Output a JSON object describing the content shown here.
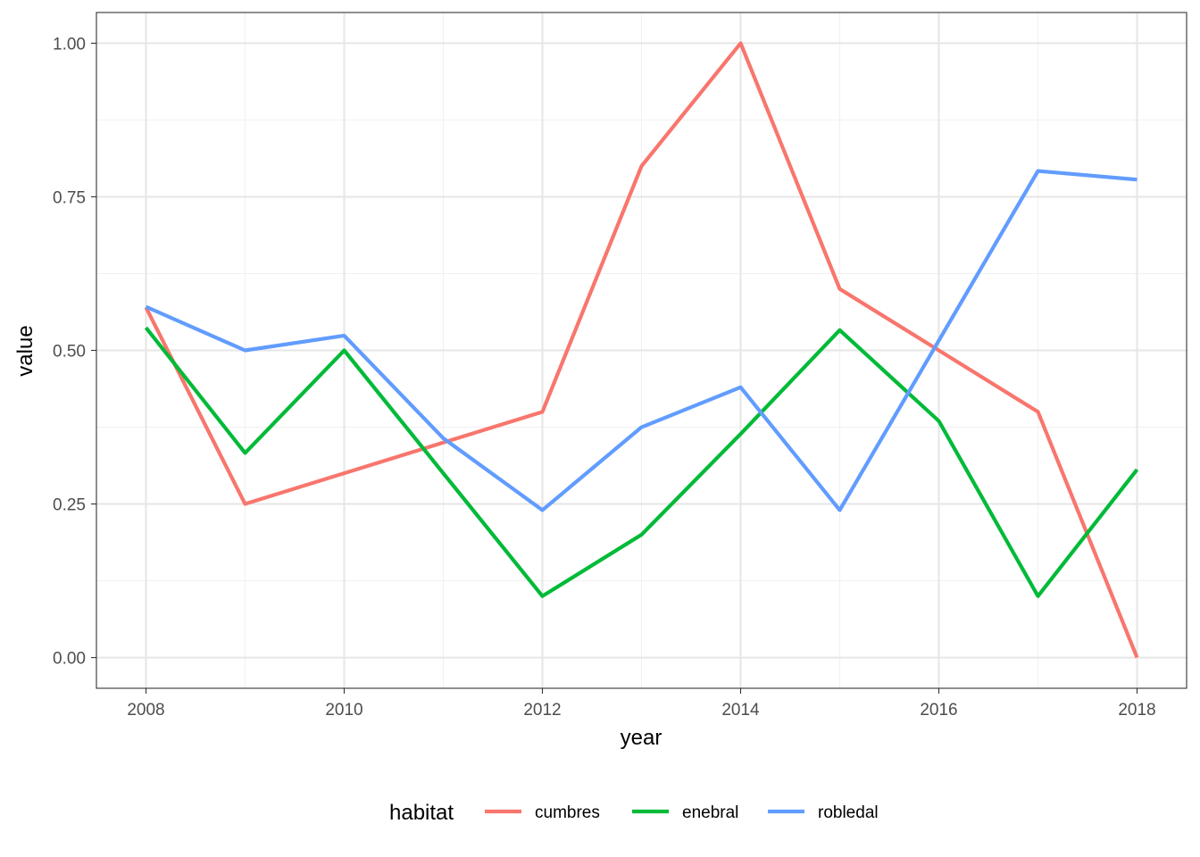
{
  "chart_data": {
    "type": "line",
    "xlabel": "year",
    "ylabel": "value",
    "xlim": [
      2007.5,
      2018.5
    ],
    "ylim": [
      -0.05,
      1.05
    ],
    "x_ticks": [
      2008,
      2010,
      2012,
      2014,
      2016,
      2018
    ],
    "x_tick_labels": [
      "2008",
      "2010",
      "2012",
      "2014",
      "2016",
      "2018"
    ],
    "y_ticks": [
      0,
      0.25,
      0.5,
      0.75,
      1.0
    ],
    "y_tick_labels": [
      "0.00",
      "0.25",
      "0.50",
      "0.75",
      "1.00"
    ],
    "grid": true,
    "legend_position": "bottom",
    "legend_title": "habitat",
    "x": [
      2008,
      2009,
      2010,
      2011,
      2012,
      2013,
      2014,
      2015,
      2016,
      2017,
      2018
    ],
    "series": [
      {
        "name": "cumbres",
        "color": "#F8766D",
        "values": [
          0.57,
          0.25,
          0.3,
          0.35,
          0.4,
          0.8,
          1.0,
          0.6,
          0.5,
          0.4,
          0.0
        ]
      },
      {
        "name": "enebral",
        "color": "#00BA38",
        "values": [
          0.537,
          0.333,
          0.5,
          0.3,
          0.1,
          0.2,
          0.364,
          0.533,
          0.385,
          0.1,
          0.306
        ]
      },
      {
        "name": "robledal",
        "color": "#619CFF",
        "values": [
          0.571,
          0.5,
          0.524,
          0.357,
          0.24,
          0.375,
          0.44,
          0.24,
          0.516,
          0.792,
          0.778
        ]
      }
    ]
  }
}
